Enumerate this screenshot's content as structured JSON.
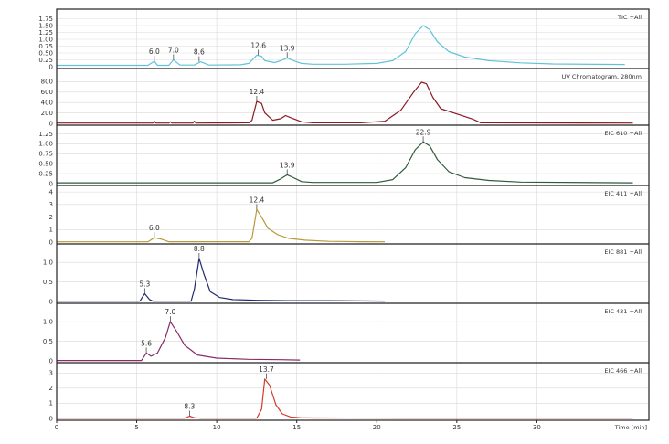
{
  "chart_data": {
    "type": "line",
    "x_axis": {
      "title": "Time [min]",
      "range": [
        0,
        37
      ],
      "ticks": [
        0,
        5,
        10,
        15,
        20,
        25,
        30
      ],
      "tick_labels": [
        "0",
        "5",
        "10",
        "15",
        "20",
        "25",
        "30"
      ]
    },
    "panels": [
      {
        "title": "TIC +All",
        "color": "#62c3d8",
        "ylim": [
          0,
          2.0
        ],
        "yticks": [
          0,
          0.25,
          0.5,
          0.75,
          1.0,
          1.25,
          1.5,
          1.75
        ],
        "ytick_labels": [
          "0",
          "0.25",
          "0.50",
          "0.75",
          "1.00",
          "1.25",
          "1.50",
          "1.75"
        ],
        "series": {
          "x": [
            0,
            5.7,
            6.1,
            6.3,
            7.0,
            7.3,
            7.7,
            8.6,
            9.0,
            9.5,
            11.5,
            12.0,
            12.5,
            12.8,
            13.0,
            13.6,
            14.0,
            14.4,
            14.8,
            15.3,
            16.0,
            18.0,
            20.0,
            21.0,
            21.8,
            22.4,
            22.9,
            23.3,
            23.8,
            24.5,
            25.5,
            27.0,
            29.0,
            31.0,
            35.5
          ],
          "y": [
            0.05,
            0.05,
            0.2,
            0.05,
            0.05,
            0.25,
            0.06,
            0.06,
            0.18,
            0.06,
            0.07,
            0.12,
            0.42,
            0.38,
            0.22,
            0.15,
            0.22,
            0.32,
            0.22,
            0.12,
            0.09,
            0.09,
            0.12,
            0.22,
            0.55,
            1.2,
            1.5,
            1.35,
            0.9,
            0.55,
            0.35,
            0.22,
            0.14,
            0.1,
            0.08
          ]
        },
        "peak_labels": [
          {
            "text": "6.0",
            "x": 6.1
          },
          {
            "text": "7.0",
            "x": 7.3
          },
          {
            "text": "8.6",
            "x": 8.9
          },
          {
            "text": "12.6",
            "x": 12.6
          },
          {
            "text": "13.9",
            "x": 14.4
          }
        ]
      },
      {
        "title": "UV Chromatogram, 280nm",
        "color": "#8b1a24",
        "ylim": [
          0,
          1000
        ],
        "yticks": [
          0,
          200,
          400,
          600,
          800
        ],
        "ytick_labels": [
          "0",
          "200",
          "400",
          "600",
          "800"
        ],
        "series": {
          "x": [
            0,
            6.0,
            6.1,
            6.2,
            7.0,
            7.1,
            7.2,
            8.5,
            8.6,
            8.7,
            12.0,
            12.2,
            12.5,
            12.8,
            13.0,
            13.5,
            14.0,
            14.3,
            14.7,
            15.3,
            16.0,
            19.0,
            20.5,
            21.5,
            22.3,
            22.8,
            23.1,
            23.5,
            24.0,
            25.0,
            26.0,
            26.5,
            36.0
          ],
          "y": [
            5,
            5,
            40,
            5,
            5,
            30,
            5,
            5,
            40,
            5,
            10,
            60,
            420,
            380,
            200,
            60,
            90,
            150,
            100,
            30,
            10,
            10,
            40,
            250,
            600,
            790,
            760,
            500,
            280,
            180,
            80,
            10,
            5
          ]
        },
        "peak_labels": [
          {
            "text": "12.4",
            "x": 12.5
          }
        ]
      },
      {
        "title": "EIC 610 +All",
        "color": "#2f5a3c",
        "ylim": [
          0,
          1.4
        ],
        "yticks": [
          0,
          0.25,
          0.5,
          0.75,
          1.0,
          1.25
        ],
        "ytick_labels": [
          "0",
          "0.25",
          "0.50",
          "0.75",
          "1.00",
          "1.25"
        ],
        "series": {
          "x": [
            0,
            13.5,
            14.0,
            14.4,
            14.8,
            15.3,
            16.0,
            20.0,
            21.0,
            21.8,
            22.4,
            22.9,
            23.3,
            23.8,
            24.5,
            25.5,
            27.0,
            29.0,
            36.0
          ],
          "y": [
            0.02,
            0.02,
            0.12,
            0.22,
            0.15,
            0.05,
            0.03,
            0.03,
            0.1,
            0.4,
            0.85,
            1.05,
            0.95,
            0.6,
            0.3,
            0.15,
            0.08,
            0.04,
            0.02
          ]
        },
        "peak_labels": [
          {
            "text": "22.9",
            "x": 22.9
          },
          {
            "text": "13.9",
            "x": 14.4
          }
        ]
      },
      {
        "title": "EIC 411 +All",
        "color": "#b89a3a",
        "ylim": [
          0,
          4.3
        ],
        "yticks": [
          0,
          1,
          2,
          3,
          4
        ],
        "ytick_labels": [
          "0",
          "1",
          "2",
          "3",
          "4"
        ],
        "series": {
          "x": [
            0,
            5.7,
            6.1,
            6.5,
            7.0,
            12.0,
            12.2,
            12.5,
            12.8,
            13.2,
            13.8,
            14.5,
            15.5,
            17.0,
            19.0,
            20.5
          ],
          "y": [
            0.02,
            0.02,
            0.35,
            0.25,
            0.03,
            0.03,
            0.3,
            2.6,
            2.0,
            1.1,
            0.6,
            0.3,
            0.15,
            0.06,
            0.03,
            0.02
          ]
        },
        "peak_labels": [
          {
            "text": "12.4",
            "x": 12.5
          },
          {
            "text": "6.0",
            "x": 6.1
          }
        ]
      },
      {
        "title": "EIC 881 +All",
        "color": "#1f2a6e",
        "ylim": [
          0,
          1.4
        ],
        "yticks": [
          0,
          0.5,
          1.0
        ],
        "ytick_labels": [
          "0",
          "0.5",
          "1.0"
        ],
        "series": {
          "x": [
            0,
            5.2,
            5.5,
            5.8,
            6.0,
            8.4,
            8.6,
            8.9,
            9.2,
            9.6,
            10.2,
            11.0,
            12.5,
            14.5,
            17.0,
            20.5
          ],
          "y": [
            0.01,
            0.01,
            0.2,
            0.05,
            0.01,
            0.01,
            0.3,
            1.1,
            0.7,
            0.25,
            0.1,
            0.05,
            0.03,
            0.02,
            0.02,
            0.01
          ]
        },
        "peak_labels": [
          {
            "text": "8.8",
            "x": 8.9
          },
          {
            "text": "5.3",
            "x": 5.5
          }
        ]
      },
      {
        "title": "EIC 431 +All",
        "color": "#8a2a6a",
        "ylim": [
          0,
          1.4
        ],
        "yticks": [
          0,
          0.5,
          1.0
        ],
        "ytick_labels": [
          "0",
          "0.5",
          "1.0"
        ],
        "series": {
          "x": [
            0,
            5.3,
            5.6,
            5.9,
            6.3,
            6.8,
            7.1,
            7.5,
            8.0,
            8.8,
            10.0,
            12.0,
            14.0,
            15.2
          ],
          "y": [
            0.01,
            0.01,
            0.2,
            0.12,
            0.2,
            0.6,
            1.0,
            0.75,
            0.4,
            0.15,
            0.07,
            0.04,
            0.03,
            0.02
          ]
        },
        "peak_labels": [
          {
            "text": "7.0",
            "x": 7.1
          },
          {
            "text": "5.6",
            "x": 5.6
          }
        ]
      },
      {
        "title": "EIC 466 +All",
        "color": "#d23a2e",
        "ylim": [
          0,
          3.5
        ],
        "yticks": [
          0,
          1,
          2,
          3
        ],
        "ytick_labels": [
          "0",
          "1",
          "2",
          "3"
        ],
        "series": {
          "x": [
            0,
            8.0,
            8.3,
            8.6,
            9.0,
            12.5,
            12.8,
            13.0,
            13.3,
            13.7,
            14.1,
            14.6,
            15.2,
            16.0,
            22.0,
            36.0
          ],
          "y": [
            0.02,
            0.02,
            0.15,
            0.05,
            0.02,
            0.02,
            0.6,
            2.6,
            2.2,
            0.9,
            0.3,
            0.1,
            0.05,
            0.03,
            0.02,
            0.02
          ]
        },
        "peak_labels": [
          {
            "text": "13.7",
            "x": 13.1
          },
          {
            "text": "8.3",
            "x": 8.3
          }
        ]
      }
    ]
  }
}
